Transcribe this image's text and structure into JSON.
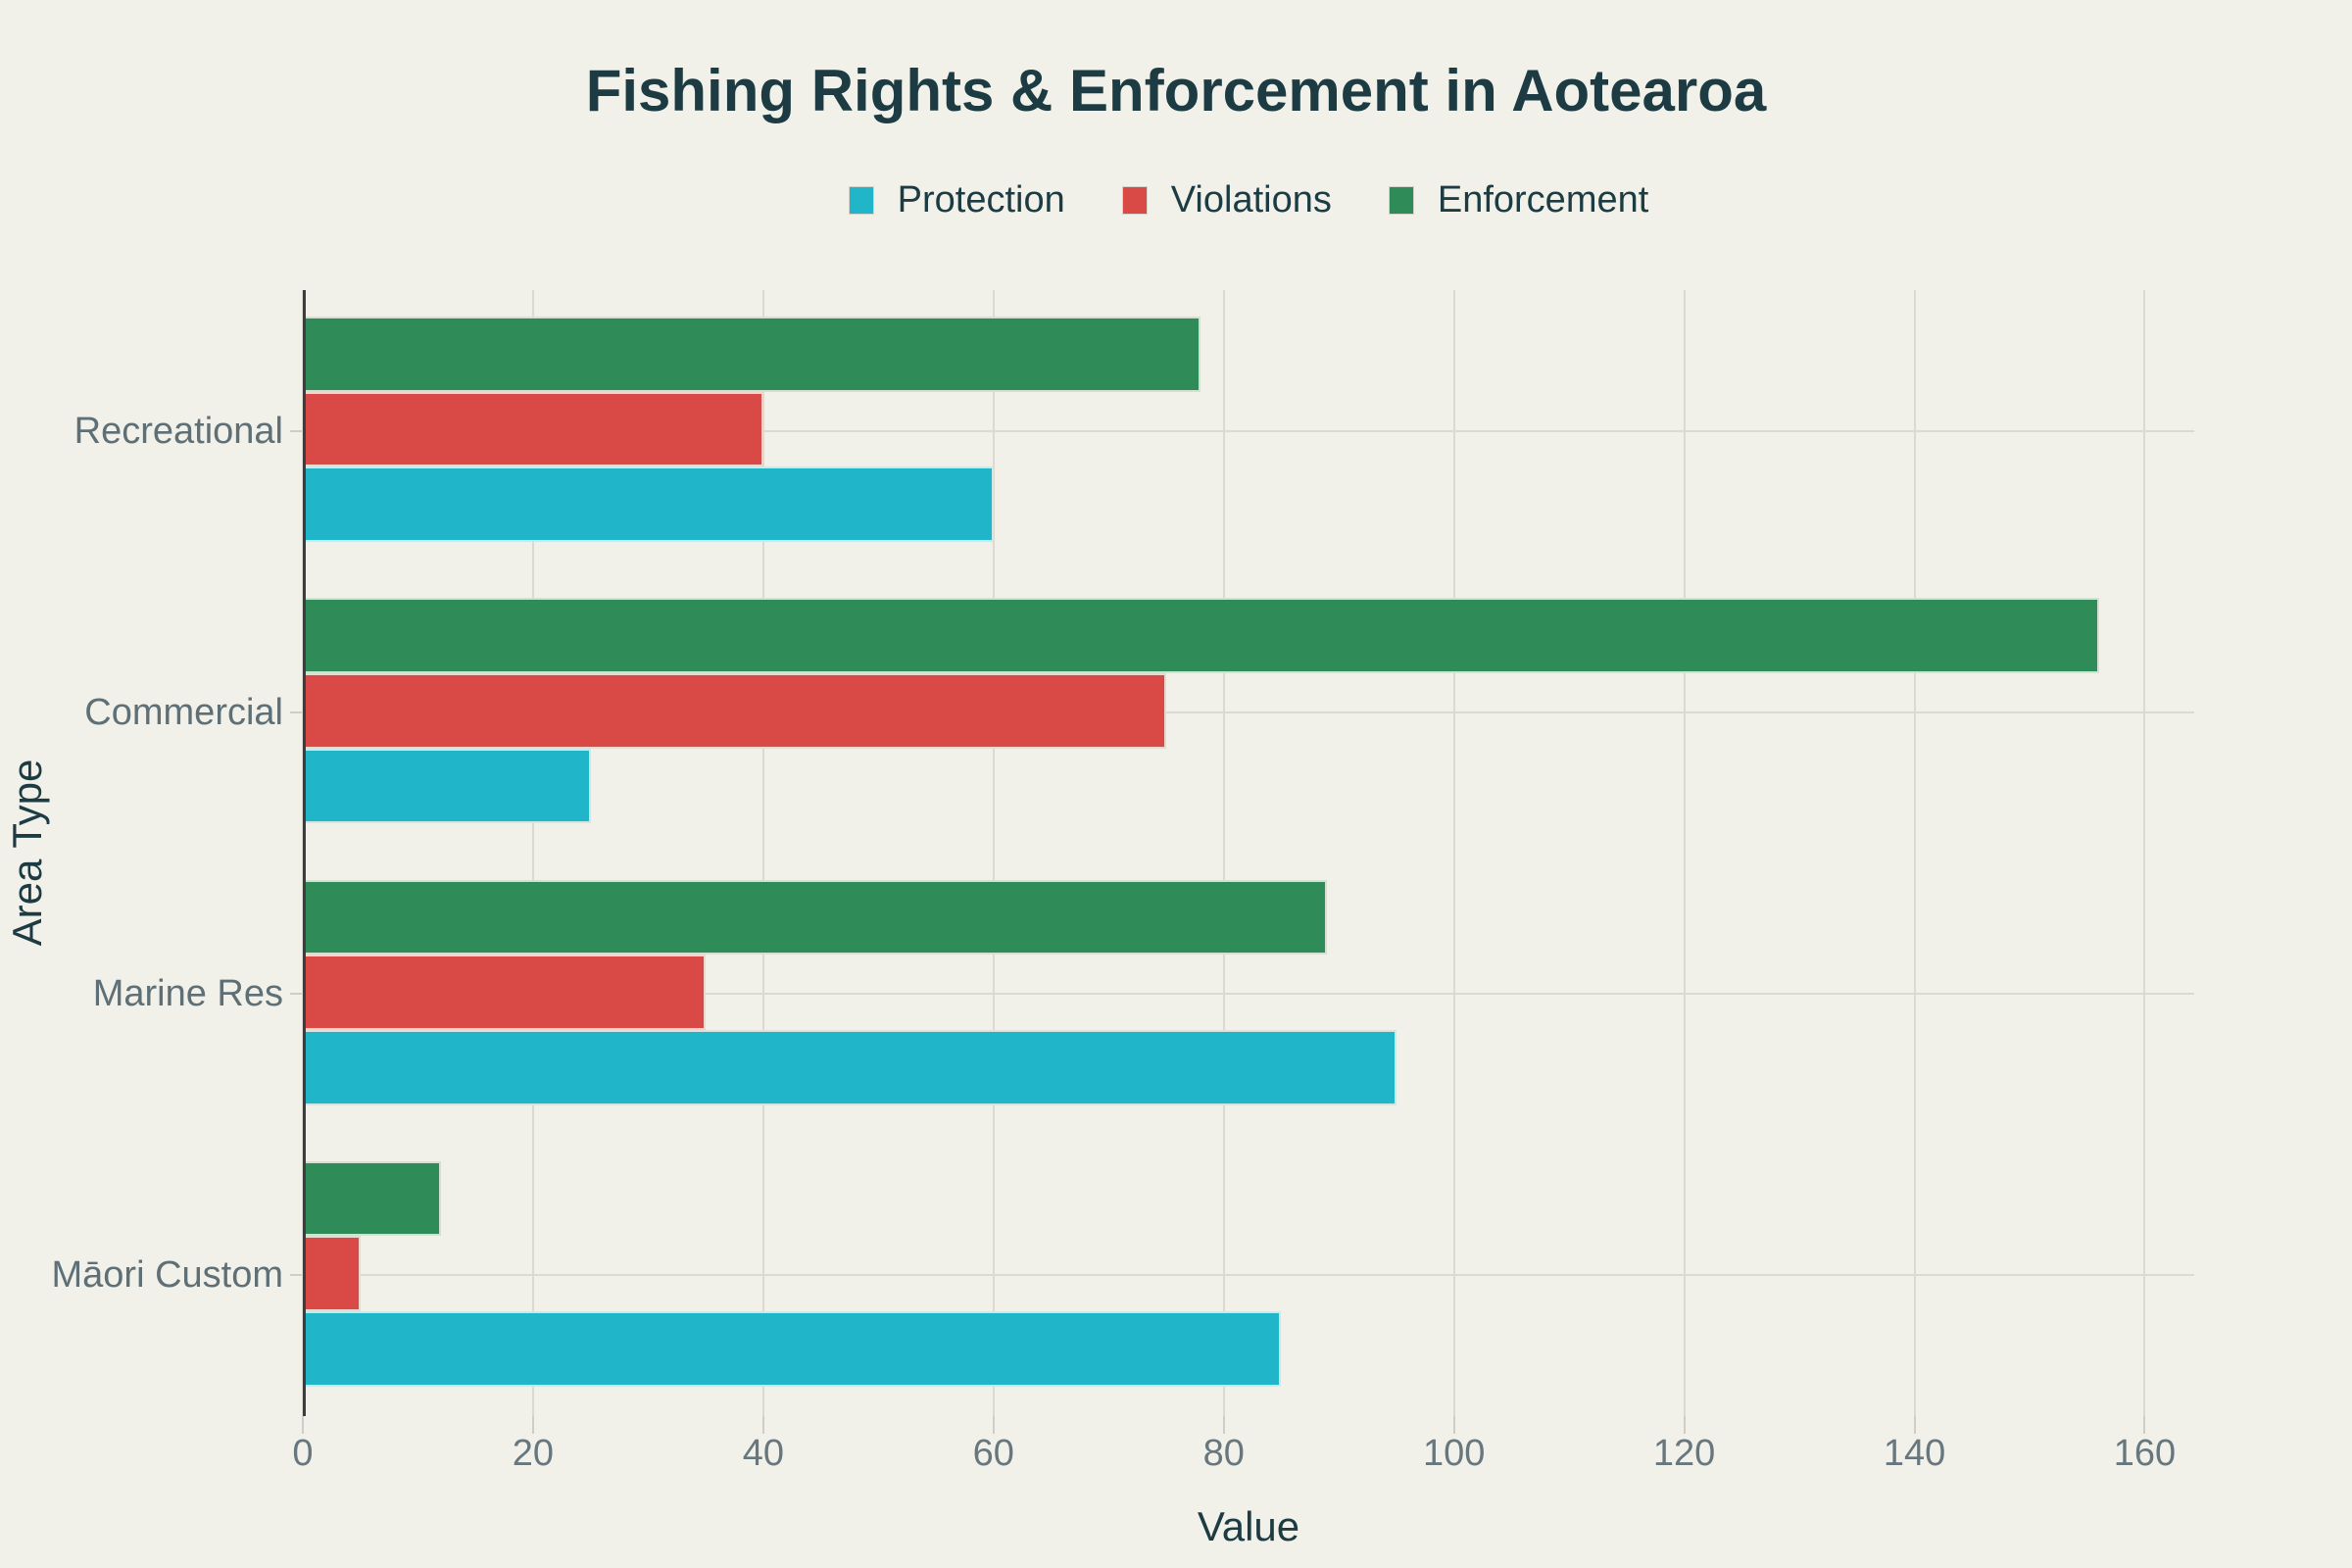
{
  "title": "Fishing Rights & Enforcement in Aotearoa",
  "colors": {
    "background": "#f1f1ea",
    "title_text": "#1c3b43",
    "tick_text": "#68777d",
    "category_text": "#5f6f76",
    "gridline": "#dbd9d1",
    "axis_line": "#3d3d3d",
    "protection": "#21b5c9",
    "violations": "#d94a47",
    "enforcement": "#2f8c59"
  },
  "chart_data": {
    "type": "bar",
    "orientation": "horizontal",
    "title": "Fishing Rights & Enforcement in Aotearoa",
    "categories": [
      "Recreational",
      "Commercial",
      "Marine Res",
      "Māori Custom"
    ],
    "series": [
      {
        "name": "Protection",
        "color": "#21b5c9",
        "values": [
          60,
          25,
          95,
          85
        ]
      },
      {
        "name": "Violations",
        "color": "#d94a47",
        "values": [
          40,
          75,
          35,
          5
        ]
      },
      {
        "name": "Enforcement",
        "color": "#2f8c59",
        "values": [
          78,
          156,
          89,
          12
        ]
      }
    ],
    "bar_order_top_to_bottom": [
      "Enforcement",
      "Violations",
      "Protection"
    ],
    "xlabel": "Value",
    "ylabel": "Area Type",
    "x_ticks": [
      0,
      20,
      40,
      60,
      80,
      100,
      120,
      140,
      160
    ],
    "xlim": [
      0,
      164.3
    ],
    "grid": true,
    "legend_position": "top-center"
  }
}
